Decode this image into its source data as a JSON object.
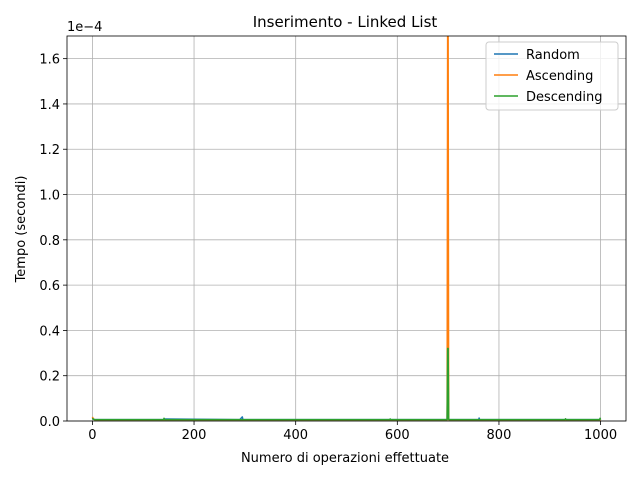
{
  "chart_data": {
    "type": "line",
    "title": "Inserimento - Linked List",
    "xlabel": "Numero di operazioni effettuate",
    "ylabel": "Tempo (secondi)",
    "y_scale_label": "1e−4",
    "y_scale_factor": 0.0001,
    "xlim": [
      -50,
      1050
    ],
    "ylim": [
      0,
      0.00017
    ],
    "xticks": [
      0,
      200,
      400,
      600,
      800,
      1000
    ],
    "yticks": [
      0,
      2e-05,
      4e-05,
      6e-05,
      8e-05,
      0.0001,
      0.00012,
      0.00014,
      0.00016
    ],
    "ytick_labels": [
      "0.0",
      "0.2",
      "0.4",
      "0.6",
      "0.8",
      "1.0",
      "1.2",
      "1.4",
      "1.6"
    ],
    "grid": true,
    "legend_position": "top-right",
    "series": [
      {
        "name": "Random",
        "color": "#1f77b4",
        "x": [
          0,
          2,
          5,
          140,
          141,
          290,
          295,
          296,
          297,
          698,
          699,
          700,
          701,
          702,
          760,
          761,
          762,
          1000
        ],
        "y": [
          1.5e-06,
          8e-07,
          6e-07,
          6e-07,
          9e-07,
          6e-07,
          1.8e-06,
          7e-07,
          6e-07,
          6e-07,
          2.8e-05,
          2.9e-05,
          7e-07,
          6e-07,
          6e-07,
          1.3e-06,
          6e-07,
          6e-07
        ]
      },
      {
        "name": "Ascending",
        "color": "#ff7f0e",
        "x": [
          0,
          2,
          5,
          300,
          600,
          698,
          699,
          700,
          701,
          702,
          1000
        ],
        "y": [
          1.8e-06,
          8e-07,
          5e-07,
          5e-07,
          5e-07,
          5e-07,
          0.00017,
          0.00017,
          6e-07,
          5e-07,
          5e-07
        ]
      },
      {
        "name": "Descending",
        "color": "#2ca02c",
        "x": [
          0,
          2,
          5,
          140,
          141,
          142,
          585,
          586,
          587,
          698,
          699,
          700,
          701,
          702,
          930,
          931,
          932,
          998,
          999,
          1000
        ],
        "y": [
          1.2e-06,
          7e-07,
          6e-07,
          6e-07,
          1.2e-06,
          6e-07,
          6e-07,
          9e-07,
          6e-07,
          6e-07,
          3.2e-05,
          3.2e-05,
          7e-07,
          6e-07,
          6e-07,
          1e-06,
          6e-07,
          6e-07,
          1.2e-06,
          6e-07
        ]
      }
    ]
  }
}
